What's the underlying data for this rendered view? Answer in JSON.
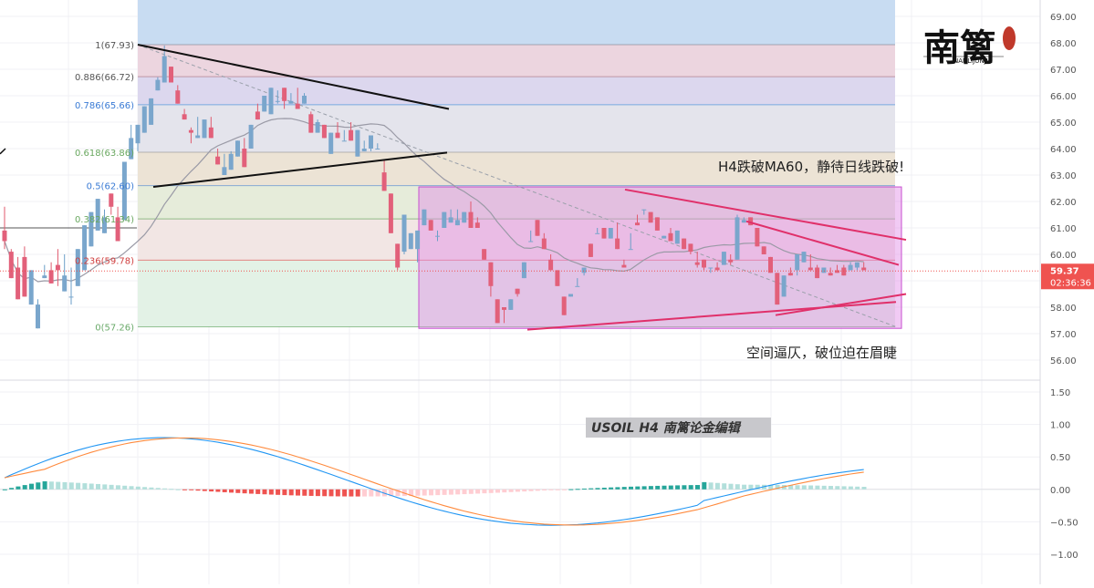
{
  "chart_data": {
    "type": "candlestick",
    "symbol_label": "USOIL  H4  南篱论金编辑",
    "price_axis": {
      "ticks": [
        "69.00",
        "68.00",
        "67.00",
        "66.00",
        "65.00",
        "64.00",
        "63.00",
        "62.00",
        "61.00",
        "60.00",
        "59.00",
        "58.00",
        "57.00",
        "56.00"
      ],
      "range": [
        55.0,
        69.4
      ]
    },
    "macd_axis": {
      "ticks": [
        "1.50",
        "1.00",
        "0.50",
        "0.00",
        "−0.50",
        "−1.00"
      ],
      "range": [
        -1.35,
        1.7
      ]
    },
    "current_price": {
      "value": 59.37,
      "label": "59.37",
      "countdown": "02:36:36"
    },
    "fib_levels": [
      {
        "ratio": "1",
        "price": 67.93,
        "label": "1(67.93)"
      },
      {
        "ratio": "0.886",
        "price": 66.72,
        "label": "0.886(66.72)"
      },
      {
        "ratio": "0.786",
        "price": 65.66,
        "label": "0.786(65.66)"
      },
      {
        "ratio": "0.618",
        "price": 63.86,
        "label": "0.618(63.86)"
      },
      {
        "ratio": "0.5",
        "price": 62.6,
        "label": "0.5(62.60)"
      },
      {
        "ratio": "0.382",
        "price": 61.34,
        "label": "0.382(61.34)"
      },
      {
        "ratio": "0.236",
        "price": 59.78,
        "label": "0.236(59.78)"
      },
      {
        "ratio": "0",
        "price": 57.26,
        "label": "0(57.26)"
      }
    ],
    "fib_colors": [
      "#c8dcf2",
      "#ecd5df",
      "#dcd7ee",
      "#e4e4ec",
      "#ece3d5",
      "#e6ecda",
      "#f2e6e4",
      "#e3f2e6"
    ],
    "range_box": {
      "top": 62.55,
      "bottom": 57.2,
      "color": "#e08ae6"
    },
    "annotations": [
      "H4跌破MA60，静待日线跌破!",
      "空间逼仄，破位迫在眉睫"
    ],
    "logo": {
      "main": "南篱",
      "sub": "NANLIJUNJIN",
      "seal_color": "#c0392b"
    },
    "candles": [
      [
        60.9,
        60.2,
        61.8,
        60.5
      ],
      [
        60.1,
        59.3,
        60.2,
        59.1
      ],
      [
        59.5,
        58.7,
        59.9,
        58.3
      ],
      [
        59.9,
        58.4,
        60.3,
        58.4
      ],
      [
        58.1,
        59.1,
        58.5,
        59.4
      ],
      [
        57.2,
        58.3,
        58.3,
        58.1
      ],
      [
        59.1,
        59.6,
        59.1,
        59.2
      ],
      [
        59.4,
        59.4,
        59.7,
        58.9
      ],
      [
        59.6,
        60.2,
        58.8,
        59.4
      ],
      [
        58.6,
        58.9,
        60.0,
        59.2
      ],
      [
        58.4,
        59.5,
        58.1,
        58.4
      ],
      [
        58.8,
        60.1,
        59.3,
        60.2
      ],
      [
        59.4,
        60.5,
        60.8,
        61.1
      ],
      [
        60.3,
        61.3,
        61.6,
        61.6
      ],
      [
        60.9,
        61.4,
        61.6,
        62.1
      ],
      [
        60.8,
        61.6,
        61.7,
        61.4
      ],
      [
        62.3,
        62.3,
        61.5,
        61.8
      ],
      [
        61.4,
        61.8,
        61.5,
        60.5
      ],
      [
        61.3,
        61.9,
        62.8,
        63.5
      ],
      [
        63.6,
        64.5,
        64.9,
        64.4
      ],
      [
        64.2,
        63.9,
        64.0,
        64.9
      ],
      [
        64.6,
        64.9,
        65.3,
        65.6
      ],
      [
        64.9,
        65.3,
        65.8,
        65.9
      ],
      [
        66.2,
        66.4,
        66.7,
        66.6
      ],
      [
        66.5,
        67.5,
        67.9,
        67.5
      ],
      [
        67.1,
        66.7,
        66.6,
        66.5
      ],
      [
        66.2,
        66.4,
        66.0,
        65.7
      ],
      [
        65.3,
        65.5,
        65.3,
        65.1
      ],
      [
        64.7,
        64.2,
        64.8,
        64.6
      ],
      [
        64.4,
        65.2,
        65.1,
        64.5
      ],
      [
        64.4,
        64.6,
        64.8,
        65.1
      ],
      [
        64.8,
        65.2,
        65.0,
        64.4
      ],
      [
        63.7,
        63.9,
        64.0,
        63.4
      ],
      [
        63.0,
        63.6,
        63.8,
        63.3
      ],
      [
        63.2,
        63.9,
        63.8,
        63.8
      ],
      [
        63.7,
        64.1,
        64.1,
        64.3
      ],
      [
        64.0,
        64.4,
        64.0,
        63.3
      ],
      [
        64.0,
        64.2,
        64.7,
        64.9
      ],
      [
        65.4,
        65.3,
        65.7,
        65.1
      ],
      [
        65.4,
        65.8,
        65.8,
        66.0
      ],
      [
        65.3,
        65.7,
        65.5,
        66.3
      ],
      [
        65.8,
        66.2,
        65.7,
        65.8
      ],
      [
        66.3,
        65.7,
        65.5,
        65.8
      ],
      [
        65.7,
        66.0,
        66.1,
        65.8
      ],
      [
        65.7,
        66.3,
        65.7,
        65.5
      ],
      [
        65.7,
        65.8,
        66.1,
        66.0
      ],
      [
        65.3,
        65.4,
        65.0,
        64.6
      ],
      [
        64.6,
        64.9,
        65.1,
        65.0
      ],
      [
        64.9,
        64.8,
        64.8,
        64.4
      ],
      [
        63.8,
        64.4,
        64.4,
        64.6
      ],
      [
        64.6,
        64.8,
        65.0,
        64.4
      ],
      [
        64.3,
        64.3,
        64.7,
        64.3
      ],
      [
        64.7,
        65.0,
        64.9,
        64.3
      ],
      [
        63.7,
        64.1,
        64.1,
        64.7
      ],
      [
        63.9,
        64.2,
        64.3,
        64.0
      ],
      [
        64.0,
        63.9,
        64.3,
        64.5
      ],
      [
        64.0,
        64.0,
        64.2,
        64.0
      ],
      [
        63.1,
        63.5,
        63.6,
        62.4
      ],
      [
        62.3,
        61.4,
        61.2,
        60.8
      ],
      [
        60.4,
        59.4,
        59.8,
        59.5
      ],
      [
        60.1,
        60.2,
        60.0,
        61.5
      ],
      [
        60.2,
        60.4,
        60.4,
        60.8
      ],
      [
        60.2,
        59.7,
        60.4,
        60.9
      ],
      [
        61.1,
        61.5,
        61.3,
        61.7
      ],
      [
        61.3,
        61.2,
        61.2,
        60.9
      ],
      [
        60.7,
        60.9,
        60.5,
        60.7
      ],
      [
        61.0,
        61.6,
        61.4,
        61.6
      ],
      [
        61.2,
        61.3,
        61.7,
        61.4
      ],
      [
        61.1,
        61.2,
        61.7,
        61.3
      ],
      [
        61.2,
        61.6,
        61.4,
        61.6
      ],
      [
        61.6,
        62.0,
        61.7,
        61.0
      ],
      [
        61.2,
        61.4,
        61.3,
        61.0
      ],
      [
        60.2,
        59.8,
        60.0,
        59.8
      ],
      [
        59.7,
        58.4,
        59.3,
        58.8
      ],
      [
        58.3,
        58.1,
        57.9,
        57.4
      ],
      [
        58.0,
        57.8,
        57.4,
        57.9
      ],
      [
        57.9,
        58.3,
        58.1,
        58.3
      ],
      [
        58.7,
        58.4,
        58.4,
        58.5
      ],
      [
        59.1,
        59.4,
        59.7,
        59.7
      ],
      [
        60.5,
        60.9,
        60.7,
        60.5
      ],
      [
        61.3,
        60.9,
        61.0,
        60.7
      ],
      [
        60.6,
        60.8,
        60.3,
        60.2
      ],
      [
        59.8,
        60.0,
        59.6,
        59.4
      ],
      [
        59.4,
        59.0,
        58.9,
        58.8
      ],
      [
        58.4,
        58.0,
        58.2,
        57.7
      ],
      [
        58.4,
        58.4,
        58.5,
        58.5
      ],
      [
        58.8,
        59.1,
        59.1,
        58.8
      ],
      [
        59.3,
        59.2,
        59.4,
        59.5
      ],
      [
        60.4,
        60.4,
        60.4,
        59.9
      ],
      [
        60.8,
        61.0,
        60.9,
        60.8
      ],
      [
        61.0,
        61.0,
        61.0,
        60.6
      ],
      [
        60.6,
        60.9,
        60.6,
        61.0
      ],
      [
        60.6,
        61.2,
        60.6,
        60.2
      ],
      [
        59.6,
        59.8,
        59.6,
        59.5
      ],
      [
        60.2,
        60.8,
        60.4,
        60.2
      ],
      [
        61.2,
        61.5,
        61.4,
        61.1
      ],
      [
        61.7,
        61.7,
        61.5,
        61.7
      ],
      [
        61.6,
        61.6,
        61.6,
        61.2
      ],
      [
        61.4,
        61.4,
        61.3,
        60.9
      ],
      [
        60.6,
        60.6,
        60.6,
        60.7
      ],
      [
        60.8,
        61.0,
        60.6,
        60.5
      ],
      [
        60.4,
        60.7,
        60.5,
        60.9
      ],
      [
        60.6,
        60.6,
        60.6,
        60.2
      ],
      [
        60.4,
        60.2,
        60.0,
        60.1
      ],
      [
        59.7,
        60.1,
        59.5,
        59.6
      ],
      [
        59.8,
        59.5,
        59.4,
        59.5
      ],
      [
        59.5,
        59.4,
        59.3,
        59.5
      ],
      [
        59.5,
        59.7,
        59.6,
        59.4
      ],
      [
        59.6,
        59.9,
        59.6,
        60.1
      ],
      [
        59.8,
        60.0,
        59.6,
        59.7
      ],
      [
        59.8,
        61.5,
        61.4,
        61.4
      ],
      [
        61.2,
        61.3,
        61.4,
        61.3
      ],
      [
        61.4,
        61.4,
        61.2,
        61.1
      ],
      [
        61.0,
        60.9,
        60.9,
        60.3
      ],
      [
        60.3,
        60.2,
        60.1,
        60.0
      ],
      [
        59.9,
        59.8,
        59.6,
        59.3
      ],
      [
        59.3,
        58.6,
        58.2,
        58.1
      ],
      [
        58.4,
        58.9,
        58.8,
        59.2
      ],
      [
        59.3,
        59.5,
        59.3,
        59.2
      ],
      [
        59.4,
        59.2,
        59.6,
        60.0
      ],
      [
        59.7,
        59.9,
        59.9,
        60.1
      ],
      [
        59.5,
        60.0,
        59.4,
        59.4
      ],
      [
        59.5,
        59.6,
        59.4,
        59.1
      ],
      [
        59.3,
        59.4,
        59.4,
        59.5
      ],
      [
        59.3,
        59.5,
        59.4,
        59.2
      ],
      [
        59.4,
        59.6,
        59.4,
        59.3
      ],
      [
        59.5,
        59.6,
        59.5,
        59.2
      ],
      [
        59.4,
        59.7,
        59.5,
        59.6
      ],
      [
        59.5,
        59.4,
        59.6,
        59.7
      ],
      [
        59.5,
        59.7,
        59.6,
        59.4
      ]
    ]
  }
}
